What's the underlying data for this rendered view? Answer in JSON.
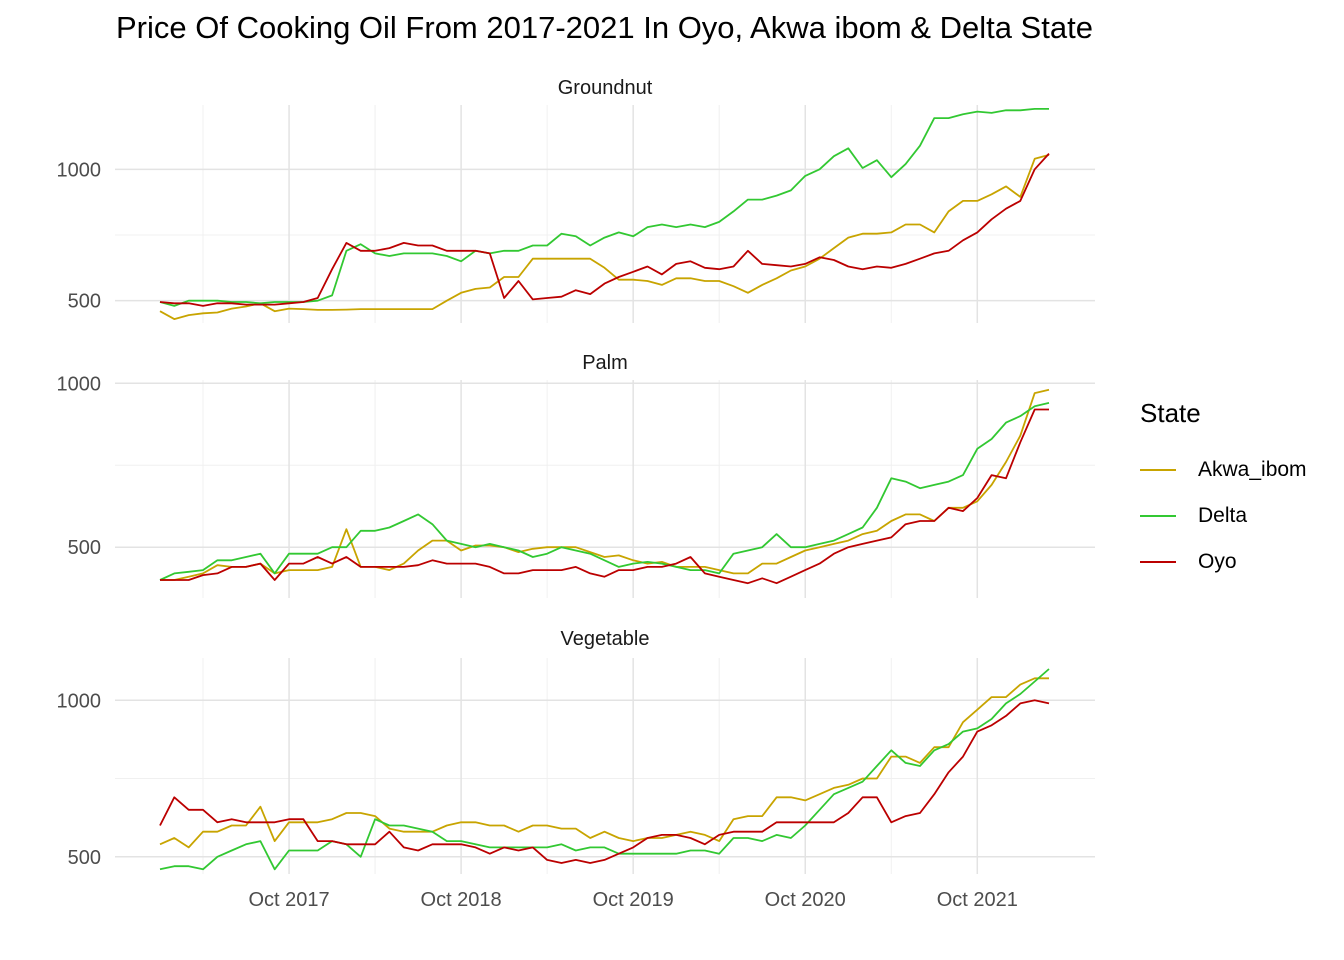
{
  "chart_data": {
    "type": "line",
    "title": "Price Of Cooking Oil From 2017-2021 In Oyo, Akwa ibom & Delta State",
    "xlabel": "",
    "ylabel": "",
    "x_start": "2017-01",
    "x_end": "2021-12",
    "x_ticks": [
      "Oct 2017",
      "Oct 2018",
      "Oct 2019",
      "Oct 2020",
      "Oct 2021"
    ],
    "legend_title": "State",
    "legend_position": "right",
    "grid": true,
    "series_styles": [
      {
        "name": "Akwa_ibom",
        "color": "#C8A400"
      },
      {
        "name": "Delta",
        "color": "#32C832"
      },
      {
        "name": "Oyo",
        "color": "#BB0000"
      }
    ],
    "panels": [
      {
        "strip": "Groundnut",
        "ylim": [
          415,
          1245
        ],
        "y_ticks": [
          500,
          1000
        ],
        "series": [
          {
            "name": "Akwa_ibom",
            "values": [
              460,
              430,
              445,
              452,
              455,
              470,
              478,
              490,
              460,
              470,
              468,
              465,
              465,
              466,
              468,
              468,
              468,
              468,
              468,
              468,
              500,
              530,
              545,
              550,
              590,
              590,
              660,
              660,
              660,
              660,
              660,
              625,
              580,
              580,
              575,
              560,
              585,
              585,
              575,
              575,
              555,
              530,
              560,
              585,
              615,
              630,
              660,
              700,
              740,
              755,
              755,
              760,
              790,
              790,
              760,
              840,
              880,
              880,
              905,
              935,
              895,
              1040,
              1055
            ]
          },
          {
            "name": "Delta",
            "values": [
              495,
              480,
              500,
              500,
              500,
              495,
              495,
              490,
              495,
              495,
              495,
              500,
              520,
              690,
              715,
              680,
              670,
              680,
              680,
              680,
              670,
              650,
              690,
              680,
              690,
              690,
              710,
              710,
              755,
              745,
              710,
              740,
              760,
              745,
              780,
              790,
              780,
              790,
              780,
              800,
              840,
              885,
              885,
              900,
              920,
              975,
              1000,
              1050,
              1080,
              1005,
              1035,
              970,
              1020,
              1090,
              1195,
              1195,
              1210,
              1220,
              1215,
              1225,
              1225,
              1230,
              1230
            ]
          },
          {
            "name": "Oyo",
            "values": [
              495,
              490,
              490,
              480,
              490,
              490,
              485,
              485,
              485,
              490,
              495,
              510,
              620,
              720,
              690,
              690,
              700,
              720,
              710,
              710,
              690,
              690,
              690,
              680,
              510,
              575,
              505,
              510,
              515,
              540,
              525,
              565,
              590,
              610,
              630,
              600,
              640,
              650,
              625,
              620,
              630,
              690,
              640,
              635,
              630,
              640,
              665,
              655,
              630,
              620,
              630,
              625,
              640,
              660,
              680,
              690,
              730,
              760,
              810,
              850,
              880,
              1000,
              1060
            ]
          }
        ]
      },
      {
        "strip": "Palm",
        "ylim": [
          345,
          1010
        ],
        "y_ticks": [
          500,
          1000
        ],
        "series": [
          {
            "name": "Akwa_ibom",
            "values": [
              400,
              400,
              410,
              420,
              445,
              440,
              440,
              450,
              420,
              430,
              430,
              430,
              440,
              555,
              440,
              440,
              430,
              450,
              490,
              520,
              520,
              490,
              505,
              505,
              500,
              485,
              495,
              500,
              500,
              500,
              485,
              470,
              475,
              460,
              450,
              455,
              440,
              440,
              440,
              430,
              420,
              420,
              450,
              450,
              470,
              490,
              500,
              510,
              520,
              540,
              550,
              580,
              600,
              600,
              580,
              620,
              620,
              640,
              690,
              760,
              840,
              970,
              980
            ]
          },
          {
            "name": "Delta",
            "values": [
              400,
              420,
              425,
              430,
              460,
              460,
              470,
              480,
              420,
              480,
              480,
              480,
              500,
              500,
              550,
              550,
              560,
              580,
              600,
              570,
              520,
              510,
              500,
              510,
              500,
              490,
              470,
              480,
              500,
              490,
              480,
              460,
              440,
              450,
              455,
              450,
              440,
              430,
              430,
              420,
              480,
              490,
              500,
              540,
              500,
              500,
              510,
              520,
              540,
              560,
              620,
              710,
              700,
              680,
              690,
              700,
              720,
              800,
              830,
              880,
              900,
              930,
              940
            ]
          },
          {
            "name": "Oyo",
            "values": [
              400,
              400,
              400,
              415,
              420,
              440,
              440,
              450,
              400,
              450,
              450,
              470,
              450,
              470,
              440,
              440,
              440,
              440,
              445,
              460,
              450,
              450,
              450,
              440,
              420,
              420,
              430,
              430,
              430,
              440,
              420,
              410,
              430,
              430,
              440,
              440,
              450,
              470,
              420,
              410,
              400,
              390,
              405,
              390,
              410,
              430,
              450,
              480,
              500,
              510,
              520,
              530,
              570,
              580,
              580,
              620,
              610,
              650,
              720,
              710,
              820,
              920,
              920
            ]
          }
        ]
      },
      {
        "strip": "Vegetable",
        "ylim": [
          445,
          1135
        ],
        "y_ticks": [
          500,
          1000
        ],
        "series": [
          {
            "name": "Akwa_ibom",
            "values": [
              540,
              560,
              530,
              580,
              580,
              600,
              600,
              660,
              550,
              610,
              610,
              610,
              620,
              640,
              640,
              630,
              590,
              580,
              580,
              580,
              600,
              610,
              610,
              600,
              600,
              580,
              600,
              600,
              590,
              590,
              560,
              580,
              560,
              550,
              560,
              560,
              570,
              580,
              570,
              550,
              620,
              630,
              630,
              690,
              690,
              680,
              700,
              720,
              730,
              750,
              750,
              820,
              820,
              800,
              850,
              850,
              930,
              970,
              1010,
              1010,
              1050,
              1070,
              1070
            ]
          },
          {
            "name": "Delta",
            "values": [
              460,
              470,
              470,
              460,
              500,
              520,
              540,
              550,
              460,
              520,
              520,
              520,
              550,
              540,
              500,
              620,
              600,
              600,
              590,
              580,
              550,
              550,
              540,
              530,
              530,
              530,
              530,
              530,
              540,
              520,
              530,
              530,
              510,
              510,
              510,
              510,
              510,
              520,
              520,
              510,
              560,
              560,
              550,
              570,
              560,
              600,
              650,
              700,
              720,
              740,
              790,
              840,
              800,
              790,
              840,
              860,
              900,
              910,
              940,
              990,
              1020,
              1060,
              1100
            ]
          },
          {
            "name": "Oyo",
            "values": [
              600,
              690,
              650,
              650,
              610,
              620,
              610,
              610,
              610,
              620,
              620,
              550,
              550,
              540,
              540,
              540,
              580,
              530,
              520,
              540,
              540,
              540,
              530,
              510,
              530,
              520,
              530,
              490,
              480,
              490,
              480,
              490,
              510,
              530,
              560,
              570,
              570,
              560,
              540,
              570,
              580,
              580,
              580,
              610,
              610,
              610,
              610,
              610,
              640,
              690,
              690,
              610,
              630,
              640,
              700,
              770,
              820,
              900,
              920,
              950,
              990,
              1000,
              990
            ]
          }
        ]
      }
    ]
  }
}
